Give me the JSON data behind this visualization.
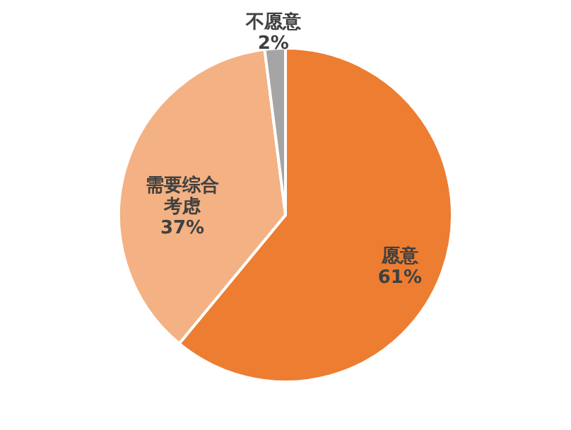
{
  "chart_data": {
    "type": "pie",
    "categories": [
      "愿意",
      "需要综合考虑",
      "不愿意"
    ],
    "values": [
      61,
      37,
      2
    ],
    "colors": [
      "#ed7d31",
      "#f4b183",
      "#a5a5a5"
    ],
    "value_labels": [
      "61%",
      "37%",
      "2%"
    ]
  }
}
